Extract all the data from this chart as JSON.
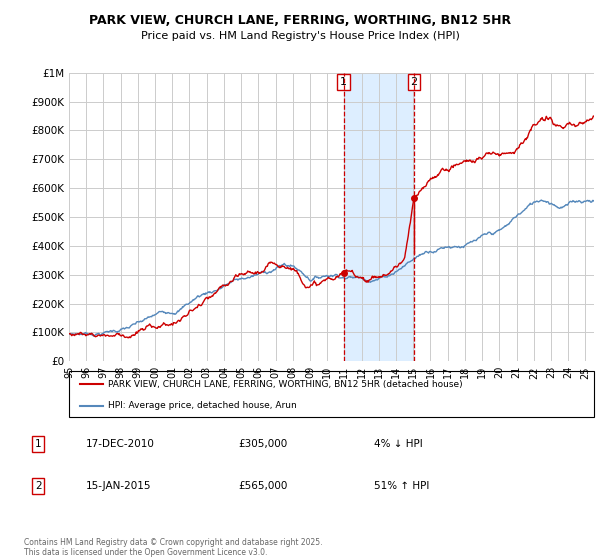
{
  "title": "PARK VIEW, CHURCH LANE, FERRING, WORTHING, BN12 5HR",
  "subtitle": "Price paid vs. HM Land Registry's House Price Index (HPI)",
  "legend_line1": "PARK VIEW, CHURCH LANE, FERRING, WORTHING, BN12 5HR (detached house)",
  "legend_line2": "HPI: Average price, detached house, Arun",
  "annotation1_date": "17-DEC-2010",
  "annotation1_price": "£305,000",
  "annotation1_hpi": "4% ↓ HPI",
  "annotation2_date": "15-JAN-2015",
  "annotation2_price": "£565,000",
  "annotation2_hpi": "51% ↑ HPI",
  "footer": "Contains HM Land Registry data © Crown copyright and database right 2025.\nThis data is licensed under the Open Government Licence v3.0.",
  "marker1_year": 2010.96,
  "marker2_year": 2015.04,
  "red_color": "#cc0000",
  "blue_color": "#5588bb",
  "shade_color": "#ddeeff",
  "grid_color": "#cccccc",
  "ylim_max": 1000000,
  "xlim_min": 1995,
  "xlim_max": 2025.5,
  "hpi_keypoints": [
    [
      1995.0,
      95000
    ],
    [
      1995.5,
      96000
    ],
    [
      1996.0,
      97000
    ],
    [
      1996.5,
      99000
    ],
    [
      1997.0,
      102000
    ],
    [
      1997.5,
      108000
    ],
    [
      1998.0,
      113000
    ],
    [
      1998.5,
      118000
    ],
    [
      1999.0,
      125000
    ],
    [
      1999.5,
      133000
    ],
    [
      2000.0,
      143000
    ],
    [
      2000.5,
      152000
    ],
    [
      2001.0,
      162000
    ],
    [
      2001.5,
      175000
    ],
    [
      2002.0,
      195000
    ],
    [
      2002.5,
      215000
    ],
    [
      2003.0,
      228000
    ],
    [
      2003.5,
      238000
    ],
    [
      2004.0,
      255000
    ],
    [
      2004.5,
      268000
    ],
    [
      2005.0,
      272000
    ],
    [
      2005.5,
      278000
    ],
    [
      2006.0,
      283000
    ],
    [
      2006.5,
      292000
    ],
    [
      2007.0,
      305000
    ],
    [
      2007.5,
      315000
    ],
    [
      2008.0,
      310000
    ],
    [
      2008.5,
      290000
    ],
    [
      2009.0,
      270000
    ],
    [
      2009.5,
      275000
    ],
    [
      2010.0,
      285000
    ],
    [
      2010.5,
      290000
    ],
    [
      2011.0,
      288000
    ],
    [
      2011.5,
      285000
    ],
    [
      2012.0,
      283000
    ],
    [
      2012.5,
      285000
    ],
    [
      2013.0,
      290000
    ],
    [
      2013.5,
      300000
    ],
    [
      2014.0,
      320000
    ],
    [
      2014.5,
      340000
    ],
    [
      2015.0,
      360000
    ],
    [
      2015.5,
      378000
    ],
    [
      2016.0,
      395000
    ],
    [
      2016.5,
      405000
    ],
    [
      2017.0,
      415000
    ],
    [
      2017.5,
      420000
    ],
    [
      2018.0,
      425000
    ],
    [
      2018.5,
      430000
    ],
    [
      2019.0,
      435000
    ],
    [
      2019.5,
      440000
    ],
    [
      2020.0,
      445000
    ],
    [
      2020.5,
      460000
    ],
    [
      2021.0,
      490000
    ],
    [
      2021.5,
      510000
    ],
    [
      2022.0,
      530000
    ],
    [
      2022.5,
      545000
    ],
    [
      2023.0,
      540000
    ],
    [
      2023.5,
      530000
    ],
    [
      2024.0,
      535000
    ],
    [
      2024.5,
      545000
    ],
    [
      2025.0,
      550000
    ],
    [
      2025.5,
      555000
    ]
  ],
  "prop_before_keypoints": [
    [
      1995.0,
      95000
    ],
    [
      1995.5,
      96000
    ],
    [
      1996.0,
      97500
    ],
    [
      1996.5,
      100000
    ],
    [
      1997.0,
      103000
    ],
    [
      1997.5,
      108000
    ],
    [
      1998.0,
      114000
    ],
    [
      1998.5,
      119000
    ],
    [
      1999.0,
      126000
    ],
    [
      1999.5,
      134000
    ],
    [
      2000.0,
      144000
    ],
    [
      2000.5,
      153000
    ],
    [
      2001.0,
      163000
    ],
    [
      2001.5,
      176000
    ],
    [
      2002.0,
      197000
    ],
    [
      2002.5,
      217000
    ],
    [
      2003.0,
      230000
    ],
    [
      2003.5,
      240000
    ],
    [
      2004.0,
      257000
    ],
    [
      2004.5,
      270000
    ],
    [
      2005.0,
      274000
    ],
    [
      2005.5,
      280000
    ],
    [
      2006.0,
      285000
    ],
    [
      2006.5,
      294000
    ],
    [
      2007.0,
      308000
    ],
    [
      2007.5,
      318000
    ],
    [
      2008.0,
      312000
    ],
    [
      2008.5,
      292000
    ],
    [
      2009.0,
      272000
    ],
    [
      2009.5,
      277000
    ],
    [
      2010.0,
      287000
    ],
    [
      2010.5,
      292000
    ],
    [
      2010.96,
      305000
    ]
  ],
  "prop_after1_keypoints": [
    [
      2010.96,
      305000
    ],
    [
      2011.5,
      300000
    ],
    [
      2012.0,
      298000
    ],
    [
      2012.5,
      300000
    ],
    [
      2013.0,
      308000
    ],
    [
      2013.5,
      320000
    ],
    [
      2014.0,
      345000
    ],
    [
      2014.5,
      375000
    ],
    [
      2015.04,
      565000
    ]
  ],
  "prop_after2_keypoints": [
    [
      2015.04,
      565000
    ],
    [
      2015.5,
      590000
    ],
    [
      2016.0,
      620000
    ],
    [
      2016.5,
      650000
    ],
    [
      2017.0,
      670000
    ],
    [
      2017.5,
      690000
    ],
    [
      2018.0,
      700000
    ],
    [
      2018.5,
      710000
    ],
    [
      2019.0,
      720000
    ],
    [
      2019.5,
      730000
    ],
    [
      2020.0,
      735000
    ],
    [
      2020.5,
      750000
    ],
    [
      2021.0,
      780000
    ],
    [
      2021.5,
      820000
    ],
    [
      2022.0,
      855000
    ],
    [
      2022.5,
      870000
    ],
    [
      2023.0,
      860000
    ],
    [
      2023.5,
      845000
    ],
    [
      2024.0,
      830000
    ],
    [
      2024.5,
      820000
    ],
    [
      2025.0,
      840000
    ],
    [
      2025.5,
      850000
    ]
  ]
}
